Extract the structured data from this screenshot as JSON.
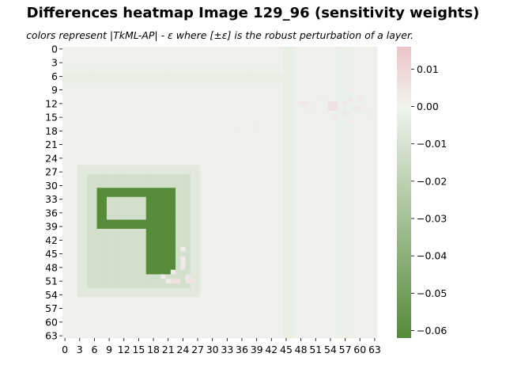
{
  "chart_data": {
    "type": "heatmap",
    "title": "Differences heatmap Image 129_96 (sensitivity weights)",
    "subtitle": "colors represent |TkML-AP| - ε where [±ε] is the robust perturbation of a layer.",
    "xlabel": "",
    "ylabel": "",
    "rows": 64,
    "cols": 64,
    "x_tick_labels": [
      "0",
      "3",
      "6",
      "9",
      "12",
      "15",
      "18",
      "21",
      "24",
      "27",
      "30",
      "33",
      "36",
      "39",
      "42",
      "45",
      "48",
      "51",
      "54",
      "57",
      "60",
      "63"
    ],
    "y_tick_labels": [
      "0",
      "3",
      "6",
      "9",
      "12",
      "15",
      "18",
      "21",
      "24",
      "27",
      "30",
      "33",
      "36",
      "39",
      "42",
      "45",
      "48",
      "51",
      "54",
      "57",
      "60",
      "63"
    ],
    "colorbar": {
      "range": [
        -0.062,
        0.016
      ],
      "tick_labels": [
        "0.01",
        "0.00",
        "−0.01",
        "−0.02",
        "−0.03",
        "−0.04",
        "−0.05",
        "−0.06"
      ],
      "tick_values": [
        0.01,
        0.0,
        -0.01,
        -0.02,
        -0.03,
        -0.04,
        -0.05,
        -0.06
      ]
    },
    "colors": {
      "min": "#568b3a",
      "mid": "#f0f3ee",
      "max": "#ecc4c8"
    },
    "background_value": -0.001,
    "features": [
      {
        "name": "band-right",
        "rows": [
          0,
          63
        ],
        "cols": [
          56,
          58
        ],
        "value": -0.002
      },
      {
        "name": "band-right-2",
        "rows": [
          0,
          63
        ],
        "cols": [
          45,
          46
        ],
        "value": -0.003
      },
      {
        "name": "band-top",
        "rows": [
          4,
          5
        ],
        "cols": [
          0,
          43
        ],
        "value": -0.002
      },
      {
        "name": "band-top-2",
        "rows": [
          6,
          7
        ],
        "cols": [
          0,
          44
        ],
        "value": -0.003
      },
      {
        "name": "digit-halo-outer",
        "rows": [
          26,
          54
        ],
        "cols": [
          3,
          27
        ],
        "value": -0.006
      },
      {
        "name": "digit-halo-inner",
        "rows": [
          28,
          52
        ],
        "cols": [
          5,
          25
        ],
        "value": -0.012
      },
      {
        "name": "digit-loop",
        "rows": [
          31,
          39
        ],
        "cols": [
          7,
          19
        ],
        "value": -0.062
      },
      {
        "name": "digit-stem",
        "rows": [
          31,
          49
        ],
        "cols": [
          17,
          22
        ],
        "value": -0.062
      }
    ],
    "positive_cells": [
      [
        12,
        54,
        0.006
      ],
      [
        12,
        55,
        0.006
      ],
      [
        13,
        54,
        0.006
      ],
      [
        13,
        55,
        0.006
      ],
      [
        12,
        57,
        0.004
      ],
      [
        13,
        59,
        0.004
      ],
      [
        14,
        57,
        0.004
      ],
      [
        11,
        58,
        0.003
      ],
      [
        12,
        48,
        0.003
      ],
      [
        12,
        49,
        0.003
      ],
      [
        13,
        50,
        0.002
      ],
      [
        11,
        52,
        0.002
      ],
      [
        15,
        55,
        0.003
      ],
      [
        16,
        58,
        0.002
      ],
      [
        17,
        39,
        0.002
      ],
      [
        18,
        35,
        0.002
      ],
      [
        51,
        22,
        0.006
      ],
      [
        51,
        23,
        0.006
      ],
      [
        51,
        25,
        0.005
      ],
      [
        51,
        26,
        0.005
      ],
      [
        50,
        25,
        0.004
      ],
      [
        48,
        24,
        0.004
      ],
      [
        47,
        24,
        0.003
      ],
      [
        46,
        24,
        0.003
      ],
      [
        50,
        20,
        0.003
      ],
      [
        49,
        22,
        0.003
      ],
      [
        51,
        21,
        0.002
      ],
      [
        44,
        24,
        0.002
      ],
      [
        11,
        60,
        0.003
      ],
      [
        14,
        62,
        0.002
      ],
      [
        9,
        58,
        0.002
      ],
      [
        13,
        60,
        0.003
      ]
    ]
  }
}
